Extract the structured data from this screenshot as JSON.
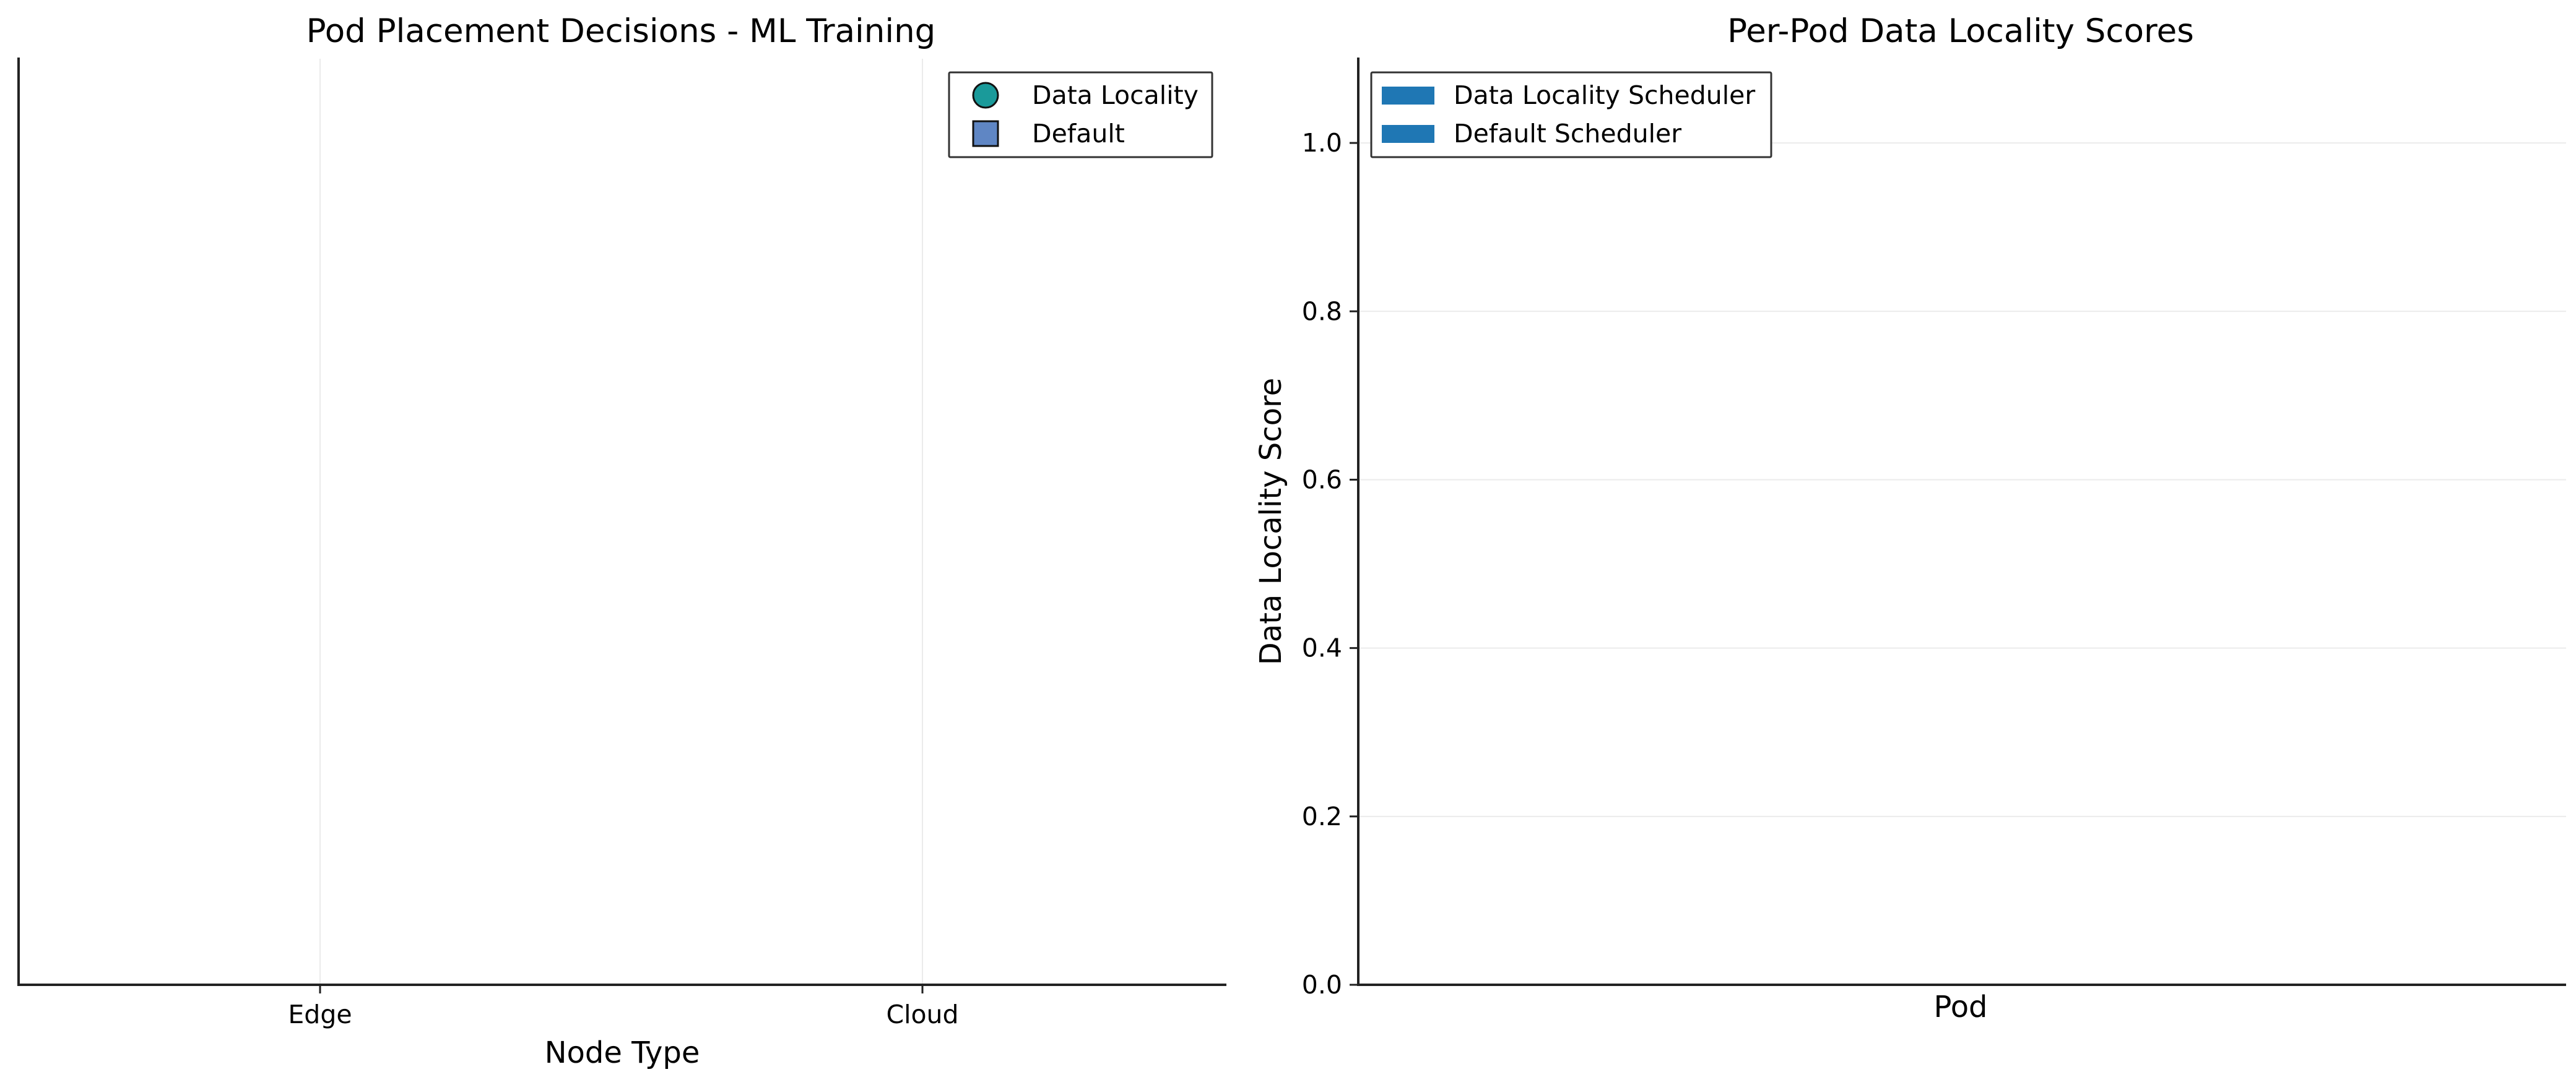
{
  "colors": {
    "data_locality": "#1a9a9a",
    "default": "#5f86c4",
    "bar": "#1f77b4",
    "grid": "#ebebeb",
    "axis": "#222222"
  },
  "chart_data": [
    {
      "type": "scatter",
      "title": "Pod Placement Decisions - ML Training",
      "xlabel": "Node Type",
      "ylabel": "",
      "categories": [
        "Edge",
        "Cloud"
      ],
      "grid": "vertical",
      "legend_position": "upper-right",
      "series": [
        {
          "name": "Data Locality",
          "marker": "circle",
          "color": "#1a9a9a",
          "points": []
        },
        {
          "name": "Default",
          "marker": "square",
          "color": "#5f86c4",
          "points": []
        }
      ]
    },
    {
      "type": "bar",
      "title": "Per-Pod Data Locality Scores",
      "xlabel": "Pod",
      "ylabel": "Data Locality Score",
      "ylim": [
        0,
        1.1
      ],
      "yticks": [
        "0.0",
        "0.2",
        "0.4",
        "0.6",
        "0.8",
        "1.0"
      ],
      "categories": [],
      "grid": "horizontal",
      "legend_position": "upper-left",
      "series": [
        {
          "name": "Data Locality Scheduler",
          "color": "#1f77b4",
          "values": []
        },
        {
          "name": "Default Scheduler",
          "color": "#1f77b4",
          "values": []
        }
      ]
    }
  ]
}
